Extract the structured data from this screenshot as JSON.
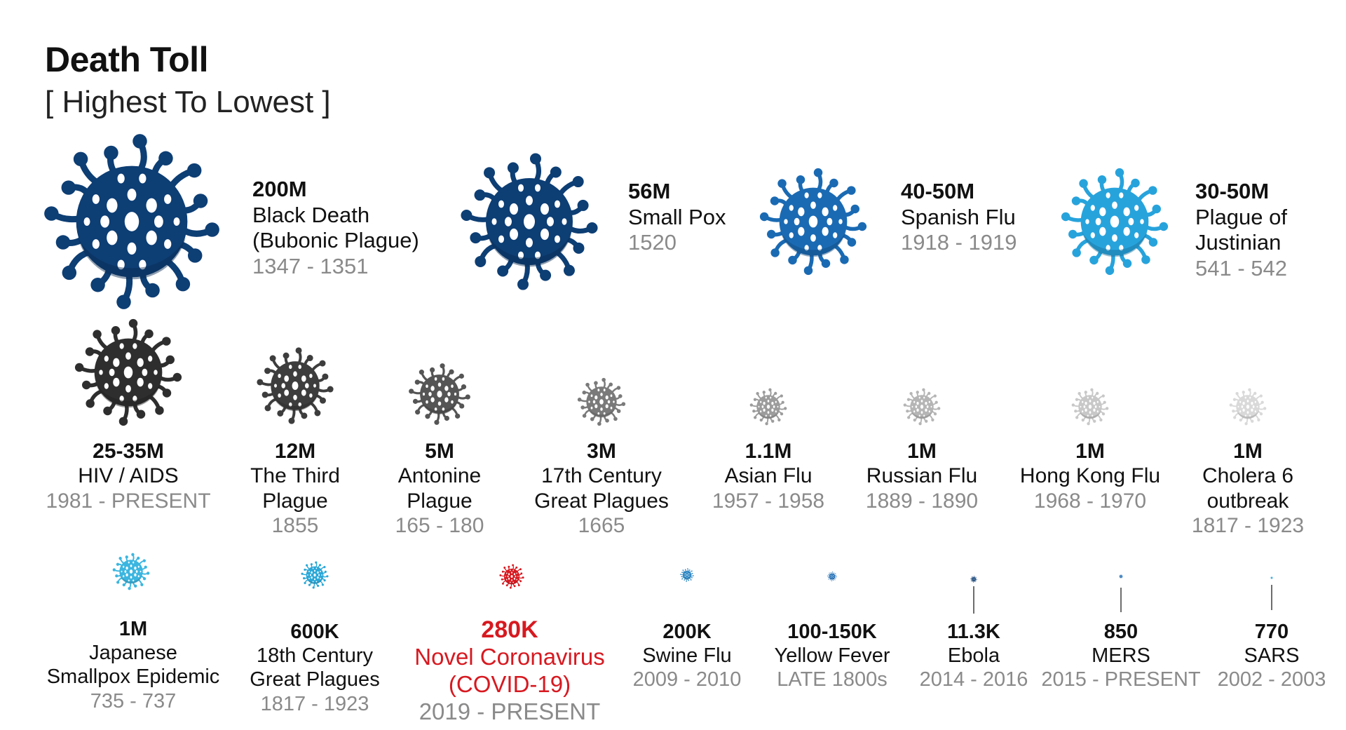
{
  "header": {
    "title": "Death Toll",
    "subtitle": "[ Highest To Lowest ]"
  },
  "chart_data": {
    "type": "bubble-pictogram",
    "title": "Death Toll",
    "subtitle": "[ Highest To Lowest ]",
    "ordering": "highest to lowest",
    "items": [
      {
        "rank": 1,
        "toll": "200M",
        "toll_value": 200000000,
        "name_lines": [
          "Black Death",
          "(Bubonic Plague)"
        ],
        "dates": "1347 - 1351",
        "color": "#0d3e74"
      },
      {
        "rank": 2,
        "toll": "56M",
        "toll_value": 56000000,
        "name_lines": [
          "Small Pox"
        ],
        "dates": "1520",
        "color": "#0d3e74"
      },
      {
        "rank": 3,
        "toll": "40-50M",
        "toll_value": 45000000,
        "name_lines": [
          "Spanish Flu"
        ],
        "dates": "1918 - 1919",
        "color": "#1a6ab3"
      },
      {
        "rank": 4,
        "toll": "30-50M",
        "toll_value": 40000000,
        "name_lines": [
          "Plague of",
          "Justinian"
        ],
        "dates": "541 - 542",
        "color": "#27a3dc"
      },
      {
        "rank": 5,
        "toll": "25-35M",
        "toll_value": 30000000,
        "name_lines": [
          "HIV / AIDS"
        ],
        "dates": "1981 - PRESENT",
        "color": "#2e2e2e"
      },
      {
        "rank": 6,
        "toll": "12M",
        "toll_value": 12000000,
        "name_lines": [
          "The Third",
          "Plague"
        ],
        "dates": "1855",
        "color": "#3d3d3d"
      },
      {
        "rank": 7,
        "toll": "5M",
        "toll_value": 5000000,
        "name_lines": [
          "Antonine",
          "Plague"
        ],
        "dates": "165 - 180",
        "color": "#555555"
      },
      {
        "rank": 8,
        "toll": "3M",
        "toll_value": 3000000,
        "name_lines": [
          "17th Century",
          "Great Plagues"
        ],
        "dates": "1665",
        "color": "#7a7a7a"
      },
      {
        "rank": 9,
        "toll": "1.1M",
        "toll_value": 1100000,
        "name_lines": [
          "Asian Flu"
        ],
        "dates": "1957 - 1958",
        "color": "#9c9c9c"
      },
      {
        "rank": 10,
        "toll": "1M",
        "toll_value": 1000000,
        "name_lines": [
          "Russian Flu"
        ],
        "dates": "1889 - 1890",
        "color": "#b5b5b5"
      },
      {
        "rank": 11,
        "toll": "1M",
        "toll_value": 1000000,
        "name_lines": [
          "Hong Kong Flu"
        ],
        "dates": "1968 - 1970",
        "color": "#c8c8c8"
      },
      {
        "rank": 12,
        "toll": "1M",
        "toll_value": 1000000,
        "name_lines": [
          "Cholera 6",
          "outbreak"
        ],
        "dates": "1817 - 1923",
        "color": "#d9d9d9"
      },
      {
        "rank": 13,
        "toll": "1M",
        "toll_value": 1000000,
        "name_lines": [
          "Japanese",
          "Smallpox Epidemic"
        ],
        "dates": "735 - 737",
        "color": "#3bb6e0"
      },
      {
        "rank": 14,
        "toll": "600K",
        "toll_value": 600000,
        "name_lines": [
          "18th Century",
          "Great Plagues"
        ],
        "dates": "1817 - 1923",
        "color": "#2aa8d8"
      },
      {
        "rank": 15,
        "toll": "280K",
        "toll_value": 280000,
        "name_lines": [
          "Novel Coronavirus",
          "(COVID-19)"
        ],
        "dates": "2019 - PRESENT",
        "color": "#d71920",
        "highlight": true
      },
      {
        "rank": 16,
        "toll": "200K",
        "toll_value": 200000,
        "name_lines": [
          "Swine Flu"
        ],
        "dates": "2009 - 2010",
        "color": "#1f7fbf"
      },
      {
        "rank": 17,
        "toll": "100-150K",
        "toll_value": 125000,
        "name_lines": [
          "Yellow Fever"
        ],
        "dates": "LATE 1800s",
        "color": "#1a6ab3"
      },
      {
        "rank": 18,
        "toll": "11.3K",
        "toll_value": 11300,
        "name_lines": [
          "Ebola"
        ],
        "dates": "2014 - 2016",
        "color": "#0d3e74"
      },
      {
        "rank": 19,
        "toll": "850",
        "toll_value": 850,
        "name_lines": [
          "MERS"
        ],
        "dates": "2015 - PRESENT",
        "color": "#1a6ab3"
      },
      {
        "rank": 20,
        "toll": "770",
        "toll_value": 770,
        "name_lines": [
          "SARS"
        ],
        "dates": "2002 - 2003",
        "color": "#27a3dc"
      }
    ]
  }
}
